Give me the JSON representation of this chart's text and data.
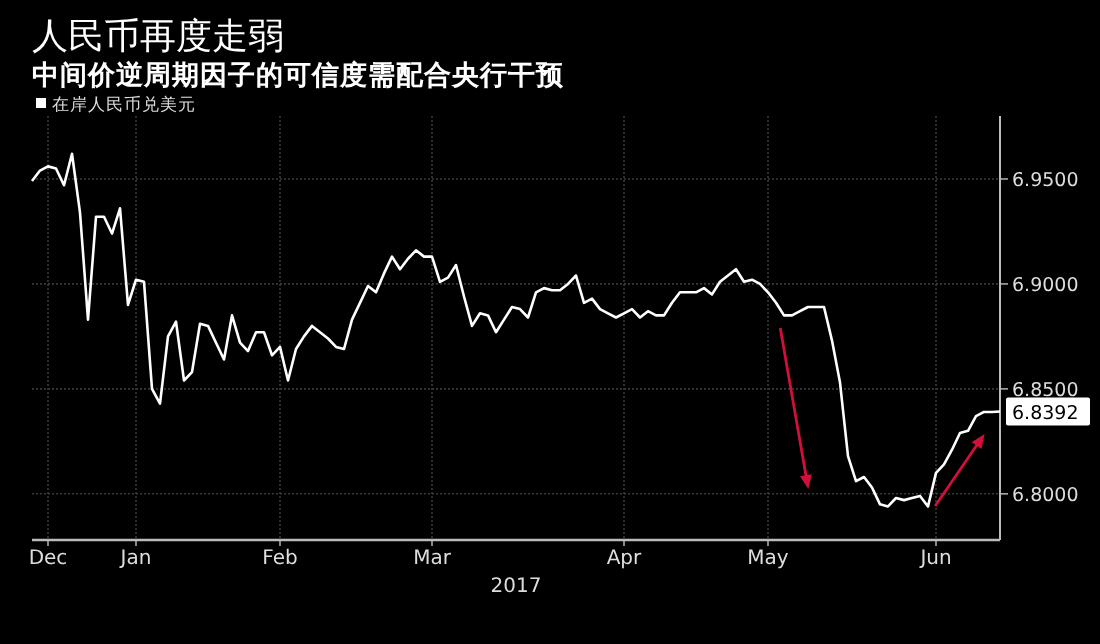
{
  "chart_data": {
    "type": "line",
    "title": "人民币再度走弱",
    "subtitle": "中间价逆周期因子的可信度需配合央行干预",
    "xlabel": "2017",
    "categories": [
      null,
      null,
      "Dec",
      null,
      null,
      null,
      null,
      null,
      null,
      null,
      null,
      null,
      null,
      "Jan",
      null,
      null,
      null,
      null,
      null,
      null,
      null,
      null,
      null,
      null,
      null,
      null,
      null,
      null,
      null,
      null,
      null,
      "Feb",
      null,
      null,
      null,
      null,
      null,
      null,
      null,
      null,
      null,
      null,
      null,
      null,
      null,
      null,
      null,
      null,
      null,
      null,
      "Mar",
      null,
      null,
      null,
      null,
      null,
      null,
      null,
      null,
      null,
      null,
      null,
      null,
      null,
      null,
      null,
      null,
      null,
      null,
      null,
      null,
      null,
      null,
      null,
      "Apr",
      null,
      null,
      null,
      null,
      null,
      null,
      null,
      null,
      null,
      null,
      null,
      null,
      null,
      null,
      null,
      null,
      null,
      "May",
      null,
      null,
      null,
      null,
      null,
      null,
      null,
      null,
      null,
      null,
      null,
      null,
      null,
      null,
      null,
      null,
      null,
      null,
      null,
      null,
      "Jun",
      null,
      null,
      null,
      null,
      null,
      null,
      null,
      null
    ],
    "series": [
      {
        "name": "在岸人民币兑美元",
        "color": "#ffffff",
        "values": [
          6.949,
          6.954,
          6.956,
          6.955,
          6.947,
          6.962,
          6.934,
          6.883,
          6.932,
          6.932,
          6.924,
          6.936,
          6.89,
          6.902,
          6.901,
          6.85,
          6.843,
          6.875,
          6.882,
          6.854,
          6.858,
          6.881,
          6.88,
          6.872,
          6.864,
          6.885,
          6.872,
          6.868,
          6.877,
          6.877,
          6.866,
          6.87,
          6.854,
          6.869,
          6.875,
          6.88,
          6.877,
          6.874,
          6.87,
          6.869,
          6.883,
          6.891,
          6.899,
          6.896,
          6.905,
          6.913,
          6.907,
          6.912,
          6.916,
          6.913,
          6.913,
          6.901,
          6.903,
          6.909,
          6.894,
          6.88,
          6.886,
          6.885,
          6.877,
          6.883,
          6.889,
          6.888,
          6.884,
          6.896,
          6.898,
          6.897,
          6.897,
          6.9,
          6.904,
          6.891,
          6.893,
          6.888,
          6.886,
          6.884,
          6.886,
          6.888,
          6.884,
          6.887,
          6.885,
          6.885,
          6.891,
          6.896,
          6.896,
          6.896,
          6.898,
          6.895,
          6.901,
          6.904,
          6.907,
          6.901,
          6.902,
          6.9,
          6.896,
          6.891,
          6.885,
          6.885,
          6.887,
          6.889,
          6.889,
          6.889,
          6.873,
          6.853,
          6.818,
          6.806,
          6.808,
          6.803,
          6.795,
          6.794,
          6.798,
          6.797,
          6.798,
          6.799,
          6.794,
          6.81,
          6.814,
          6.821,
          6.829,
          6.83,
          6.837,
          6.839,
          6.839,
          6.8392
        ],
        "value_labels": [
          null,
          null,
          null,
          null,
          null,
          null,
          null,
          null,
          null,
          null,
          null,
          null,
          null,
          null,
          null,
          null,
          null,
          null,
          null,
          null,
          null,
          null,
          null,
          null,
          null,
          null,
          null,
          null,
          null,
          null,
          null,
          null,
          null,
          null,
          null,
          null,
          null,
          null,
          null,
          null,
          null,
          null,
          null,
          null,
          null,
          null,
          null,
          null,
          null,
          null,
          null,
          null,
          null,
          null,
          null,
          null,
          null,
          null,
          null,
          null,
          null,
          null,
          null,
          null,
          null,
          null,
          null,
          null,
          null,
          null,
          null,
          null,
          null,
          null,
          null,
          null,
          null,
          null,
          null,
          null,
          null,
          null,
          null,
          null,
          null,
          null,
          null,
          null,
          null,
          null,
          null,
          null,
          null,
          null,
          null,
          null,
          null,
          null,
          null,
          null,
          null,
          null,
          null,
          null,
          null,
          null,
          null,
          null,
          null,
          null,
          null,
          null,
          null,
          null,
          null,
          null,
          null,
          null,
          null,
          null,
          null,
          "6.8392"
        ]
      }
    ],
    "ylim": [
      6.778,
      6.98
    ],
    "yticks": [
      {
        "value": 6.8,
        "label": "6.8000"
      },
      {
        "value": 6.85,
        "label": "6.8500"
      },
      {
        "value": 6.9,
        "label": "6.9000"
      },
      {
        "value": 6.95,
        "label": "6.9500"
      }
    ],
    "grid": true,
    "legend": "top left"
  }
}
